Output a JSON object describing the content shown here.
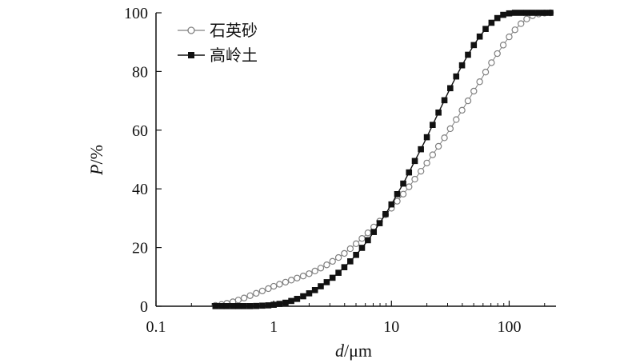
{
  "chart_data": {
    "type": "line",
    "x_scale": "log",
    "xlim": [
      0.1,
      250
    ],
    "ylim": [
      0,
      100
    ],
    "x_ticks": [
      {
        "value": 0.1,
        "label": "0.1"
      },
      {
        "value": 1,
        "label": "1"
      },
      {
        "value": 10,
        "label": "10"
      },
      {
        "value": 100,
        "label": "100"
      }
    ],
    "y_ticks": [
      {
        "value": 0,
        "label": "0"
      },
      {
        "value": 20,
        "label": "20"
      },
      {
        "value": 40,
        "label": "40"
      },
      {
        "value": 60,
        "label": "60"
      },
      {
        "value": 80,
        "label": "80"
      },
      {
        "value": 100,
        "label": "100"
      }
    ],
    "xlabel": {
      "var": "d",
      "unit": "/μm"
    },
    "ylabel": {
      "var": "P",
      "unit": "/%"
    },
    "legend_position": "top-left",
    "grid": false,
    "series": [
      {
        "name": "石英砂",
        "marker": "open-circle",
        "color": "#808080",
        "points": [
          [
            0.32,
            0.3
          ],
          [
            0.36,
            0.6
          ],
          [
            0.4,
            1.0
          ],
          [
            0.45,
            1.5
          ],
          [
            0.5,
            2.1
          ],
          [
            0.56,
            2.8
          ],
          [
            0.63,
            3.6
          ],
          [
            0.71,
            4.4
          ],
          [
            0.8,
            5.2
          ],
          [
            0.9,
            6.0
          ],
          [
            1.0,
            6.8
          ],
          [
            1.12,
            7.5
          ],
          [
            1.26,
            8.2
          ],
          [
            1.41,
            8.9
          ],
          [
            1.58,
            9.6
          ],
          [
            1.78,
            10.3
          ],
          [
            2.0,
            11.1
          ],
          [
            2.24,
            12.0
          ],
          [
            2.51,
            13.0
          ],
          [
            2.82,
            14.1
          ],
          [
            3.16,
            15.3
          ],
          [
            3.55,
            16.6
          ],
          [
            3.98,
            18.0
          ],
          [
            4.47,
            19.6
          ],
          [
            5.01,
            21.3
          ],
          [
            5.62,
            23.1
          ],
          [
            6.31,
            25.0
          ],
          [
            7.08,
            27.0
          ],
          [
            7.94,
            29.0
          ],
          [
            8.91,
            31.2
          ],
          [
            10.0,
            33.4
          ],
          [
            11.2,
            35.8
          ],
          [
            12.6,
            38.2
          ],
          [
            14.1,
            40.7
          ],
          [
            15.8,
            43.3
          ],
          [
            17.8,
            46.0
          ],
          [
            20.0,
            48.8
          ],
          [
            22.4,
            51.6
          ],
          [
            25.1,
            54.5
          ],
          [
            28.2,
            57.4
          ],
          [
            31.6,
            60.5
          ],
          [
            35.5,
            63.6
          ],
          [
            39.8,
            66.8
          ],
          [
            44.7,
            70.0
          ],
          [
            50.1,
            73.3
          ],
          [
            56.2,
            76.5
          ],
          [
            63.1,
            79.8
          ],
          [
            70.8,
            83.0
          ],
          [
            79.4,
            86.1
          ],
          [
            89.1,
            89.0
          ],
          [
            100,
            91.8
          ],
          [
            112,
            94.2
          ],
          [
            126,
            96.3
          ],
          [
            141,
            97.9
          ],
          [
            158,
            99.0
          ],
          [
            178,
            99.6
          ],
          [
            200,
            99.9
          ],
          [
            224,
            100
          ]
        ]
      },
      {
        "name": "高岭土",
        "marker": "filled-square",
        "color": "#111111",
        "points": [
          [
            0.32,
            0.05
          ],
          [
            0.36,
            0.05
          ],
          [
            0.4,
            0.05
          ],
          [
            0.45,
            0.05
          ],
          [
            0.5,
            0.05
          ],
          [
            0.56,
            0.05
          ],
          [
            0.63,
            0.05
          ],
          [
            0.71,
            0.1
          ],
          [
            0.8,
            0.2
          ],
          [
            0.9,
            0.3
          ],
          [
            1.0,
            0.5
          ],
          [
            1.12,
            0.8
          ],
          [
            1.26,
            1.2
          ],
          [
            1.41,
            1.8
          ],
          [
            1.58,
            2.5
          ],
          [
            1.78,
            3.4
          ],
          [
            2.0,
            4.4
          ],
          [
            2.24,
            5.5
          ],
          [
            2.51,
            6.8
          ],
          [
            2.82,
            8.2
          ],
          [
            3.16,
            9.7
          ],
          [
            3.55,
            11.4
          ],
          [
            3.98,
            13.3
          ],
          [
            4.47,
            15.3
          ],
          [
            5.01,
            17.5
          ],
          [
            5.62,
            19.9
          ],
          [
            6.31,
            22.5
          ],
          [
            7.08,
            25.3
          ],
          [
            7.94,
            28.3
          ],
          [
            8.91,
            31.4
          ],
          [
            10.0,
            34.7
          ],
          [
            11.2,
            38.2
          ],
          [
            12.6,
            41.8
          ],
          [
            14.1,
            45.6
          ],
          [
            15.8,
            49.5
          ],
          [
            17.8,
            53.5
          ],
          [
            20.0,
            57.6
          ],
          [
            22.4,
            61.8
          ],
          [
            25.1,
            66.0
          ],
          [
            28.2,
            70.2
          ],
          [
            31.6,
            74.3
          ],
          [
            35.5,
            78.3
          ],
          [
            39.8,
            82.1
          ],
          [
            44.7,
            85.7
          ],
          [
            50.1,
            89.0
          ],
          [
            56.2,
            91.9
          ],
          [
            63.1,
            94.5
          ],
          [
            70.8,
            96.6
          ],
          [
            79.4,
            98.2
          ],
          [
            89.1,
            99.3
          ],
          [
            100,
            99.8
          ],
          [
            112,
            100
          ],
          [
            126,
            100
          ],
          [
            141,
            100
          ],
          [
            158,
            100
          ],
          [
            178,
            100
          ],
          [
            200,
            100
          ],
          [
            224,
            100
          ]
        ]
      }
    ]
  }
}
